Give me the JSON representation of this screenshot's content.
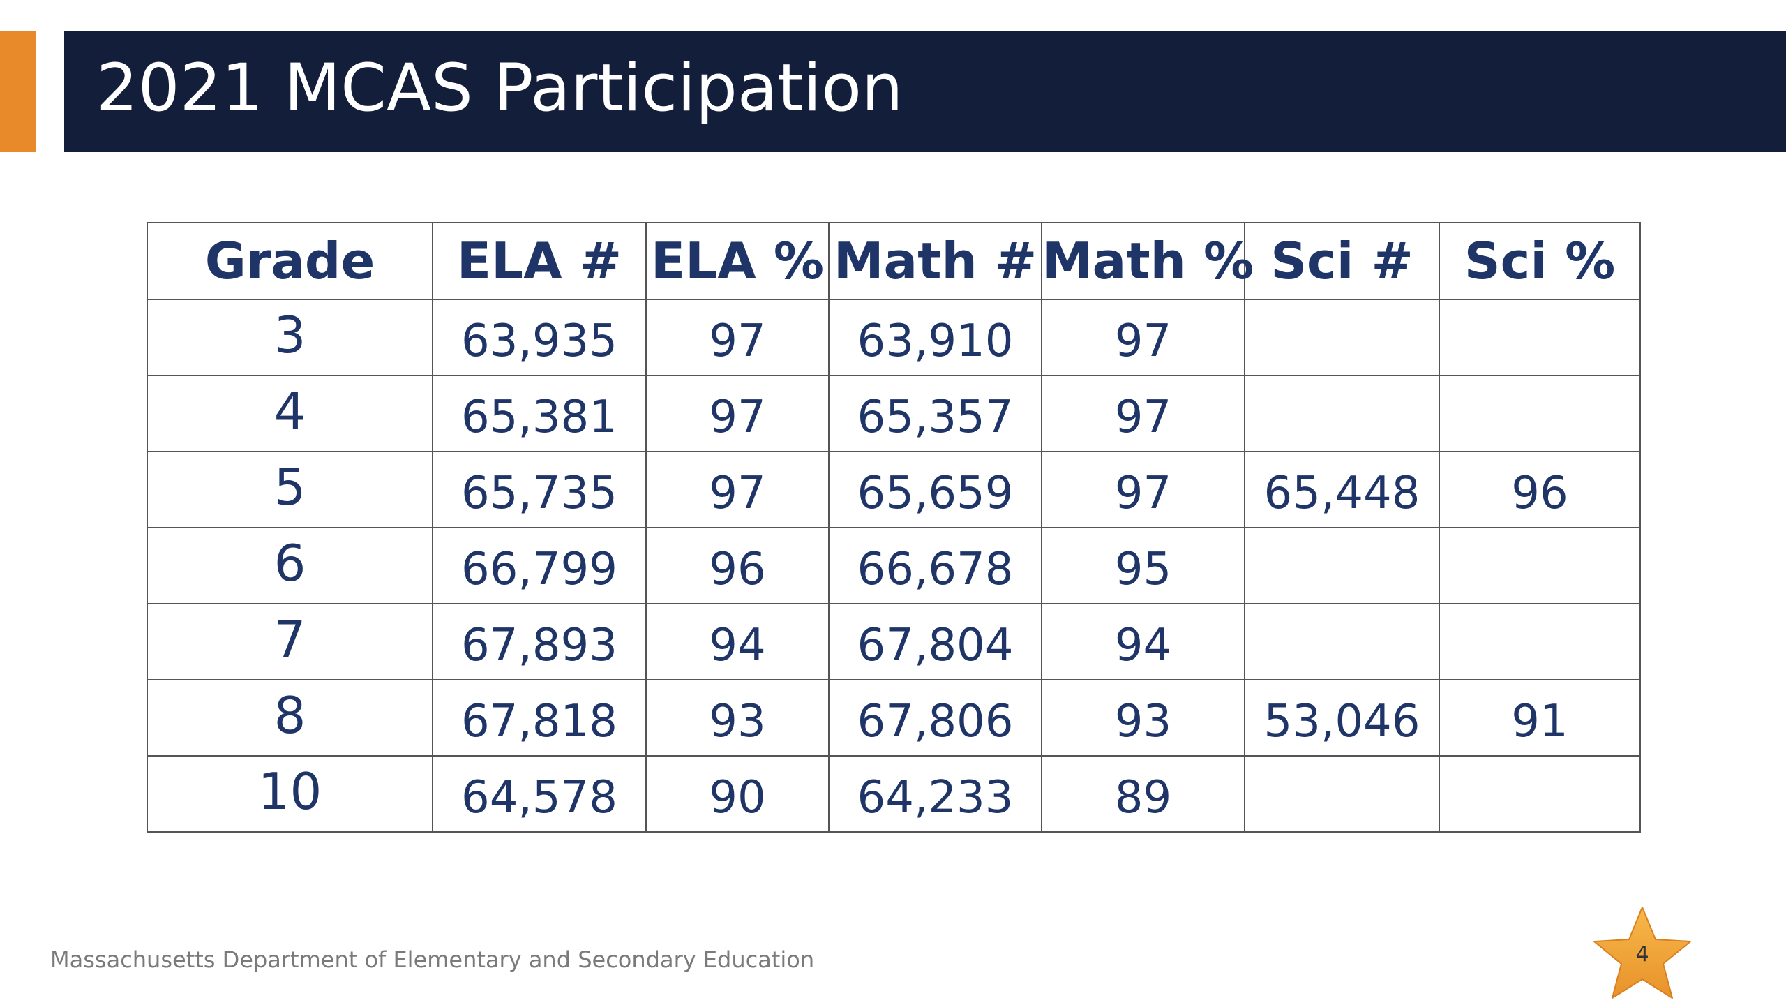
{
  "title": "2021 MCAS Participation",
  "table": {
    "headers": [
      "Grade",
      "ELA #",
      "ELA %",
      "Math #",
      "Math %",
      "Sci #",
      "Sci %"
    ],
    "rows": [
      [
        "3",
        "63,935",
        "97",
        "63,910",
        "97",
        "",
        ""
      ],
      [
        "4",
        "65,381",
        "97",
        "65,357",
        "97",
        "",
        ""
      ],
      [
        "5",
        "65,735",
        "97",
        "65,659",
        "97",
        "65,448",
        "96"
      ],
      [
        "6",
        "66,799",
        "96",
        "66,678",
        "95",
        "",
        ""
      ],
      [
        "7",
        "67,893",
        "94",
        "67,804",
        "94",
        "",
        ""
      ],
      [
        "8",
        "67,818",
        "93",
        "67,806",
        "93",
        "53,046",
        "91"
      ],
      [
        "10",
        "64,578",
        "90",
        "64,233",
        "89",
        "",
        ""
      ]
    ]
  },
  "footer": "Massachusetts Department of Elementary and Secondary Education",
  "page_number": "4",
  "colors": {
    "title_bar": "#121E3A",
    "accent": "#E8892A",
    "table_text": "#1F3568",
    "star": "#F2A531"
  },
  "icons": {
    "page_badge": "star-icon"
  }
}
